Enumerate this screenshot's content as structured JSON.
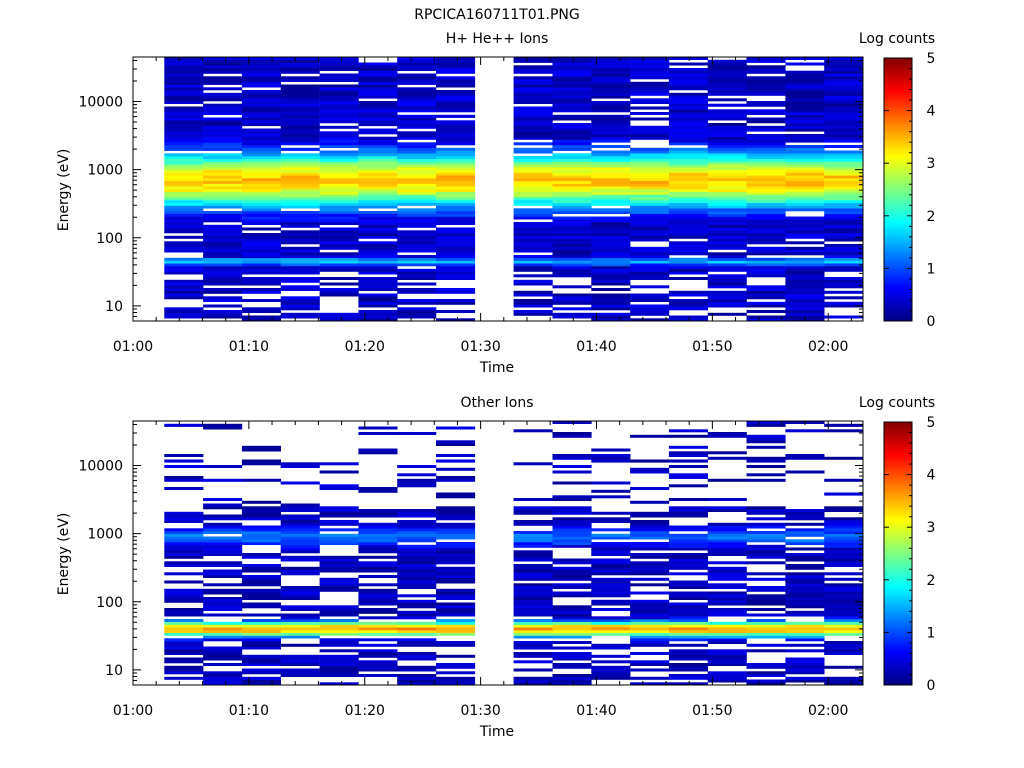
{
  "figure_title": "RPCICA160711T01.PNG",
  "chart_data": [
    {
      "type": "heatmap",
      "title": "H+ He++ Ions",
      "xlabel": "Time",
      "ylabel": "Energy (eV)",
      "x_ticks": [
        "01:00",
        "01:10",
        "01:20",
        "01:30",
        "01:40",
        "01:50",
        "02:00"
      ],
      "y_ticks": [
        "10",
        "100",
        "1000",
        "10000"
      ],
      "y_scale": "log",
      "ylim": [
        6,
        45000
      ],
      "x_range_minutes": [
        0,
        63
      ],
      "gap_minutes": [
        28.3,
        31.4
      ],
      "colorbar": {
        "label": "Log counts",
        "ticks": [
          "0",
          "1",
          "2",
          "3",
          "4",
          "5"
        ],
        "range": [
          0,
          5
        ]
      },
      "peak_energy_eV": 700,
      "peak_log_counts": 3.4,
      "low_band_eV": 45,
      "low_band_log_counts": 1.5
    },
    {
      "type": "heatmap",
      "title": "Other Ions",
      "xlabel": "Time",
      "ylabel": "Energy (eV)",
      "x_ticks": [
        "01:00",
        "01:10",
        "01:20",
        "01:30",
        "01:40",
        "01:50",
        "02:00"
      ],
      "y_ticks": [
        "10",
        "100",
        "1000",
        "10000"
      ],
      "y_scale": "log",
      "ylim": [
        6,
        45000
      ],
      "x_range_minutes": [
        0,
        63
      ],
      "gap_minutes": [
        28.3,
        31.4
      ],
      "colorbar": {
        "label": "Log counts",
        "ticks": [
          "0",
          "1",
          "2",
          "3",
          "4",
          "5"
        ],
        "range": [
          0,
          5
        ]
      },
      "peak_energy_eV": 40,
      "peak_log_counts": 3.6,
      "secondary_band_eV": 900,
      "secondary_band_log_counts": 1.2
    }
  ]
}
